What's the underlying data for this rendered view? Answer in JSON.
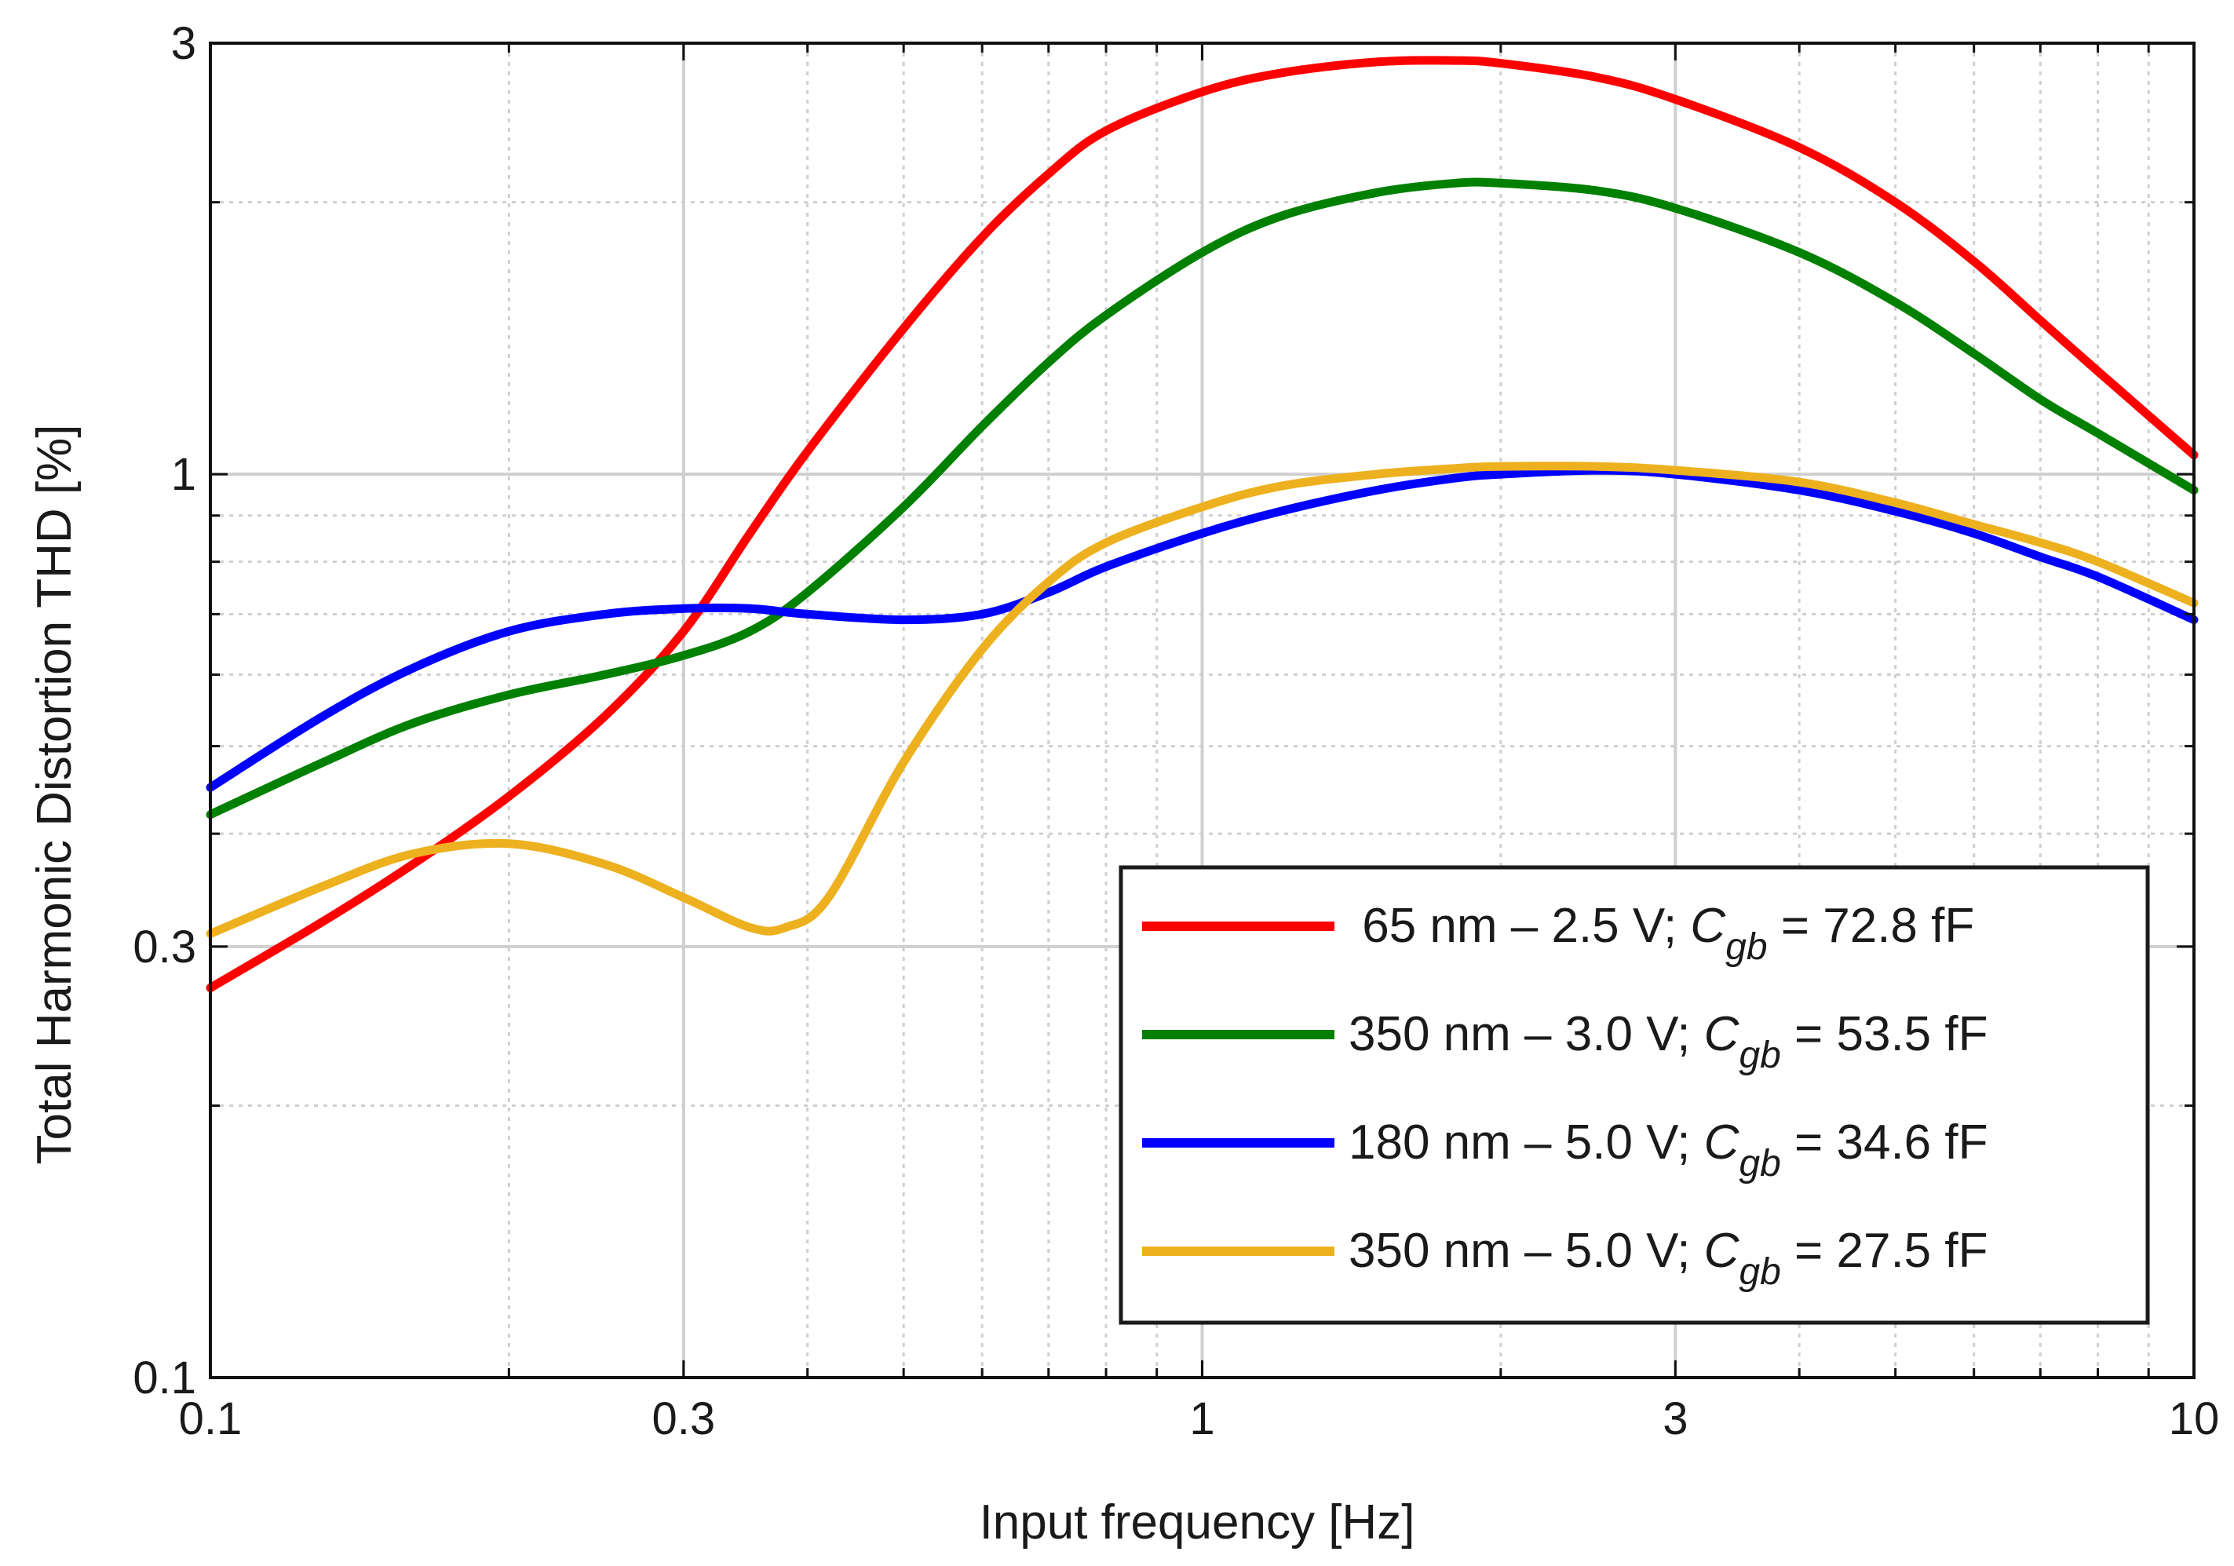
{
  "chart_data": {
    "type": "line",
    "xlabel": "Input frequency [Hz]",
    "ylabel": "Total Harmonic Distortion THD [%]",
    "xscale": "log",
    "yscale": "log",
    "xlim": [
      0.1,
      10
    ],
    "ylim": [
      0.1,
      3
    ],
    "xticks": [
      0.1,
      0.3,
      1,
      3,
      10
    ],
    "xtick_labels": [
      "0.1",
      "0.3",
      "1",
      "3",
      "10"
    ],
    "yticks": [
      0.1,
      0.3,
      1,
      3
    ],
    "ytick_labels": [
      "0.1",
      "0.3",
      "1",
      "3"
    ],
    "grid": true,
    "legend_position": "bottom-right",
    "series": [
      {
        "name": "65 nm – 2.5 V; Cgb = 72.8 fF",
        "label_main": " 65 nm – 2.5 V; ",
        "label_symbol": "C",
        "label_subscript": "gb",
        "label_tail": " = 72.8 fF",
        "color": "#ff0000",
        "x": [
          0.1,
          0.13,
          0.16,
          0.2,
          0.25,
          0.3,
          0.35,
          0.4,
          0.5,
          0.6,
          0.7,
          0.8,
          1.0,
          1.2,
          1.5,
          1.8,
          2.0,
          2.5,
          3.0,
          4.0,
          5.0,
          6.0,
          7.0,
          8.0,
          10.0
        ],
        "y": [
          0.27,
          0.32,
          0.37,
          0.44,
          0.54,
          0.67,
          0.86,
          1.06,
          1.45,
          1.83,
          2.15,
          2.4,
          2.65,
          2.78,
          2.86,
          2.87,
          2.85,
          2.75,
          2.6,
          2.3,
          2.0,
          1.72,
          1.48,
          1.3,
          1.05
        ]
      },
      {
        "name": "350 nm – 3.0 V; Cgb = 53.5 fF",
        "label_main": "350 nm – 3.0 V; ",
        "label_symbol": "C",
        "label_subscript": "gb",
        "label_tail": " = 53.5 fF",
        "color": "#008000",
        "x": [
          0.1,
          0.13,
          0.16,
          0.2,
          0.25,
          0.3,
          0.35,
          0.4,
          0.5,
          0.6,
          0.7,
          0.8,
          1.0,
          1.2,
          1.5,
          1.8,
          2.0,
          2.5,
          3.0,
          4.0,
          5.0,
          6.0,
          7.0,
          8.0,
          10.0
        ],
        "y": [
          0.42,
          0.48,
          0.53,
          0.57,
          0.6,
          0.63,
          0.67,
          0.74,
          0.92,
          1.13,
          1.33,
          1.5,
          1.76,
          1.93,
          2.05,
          2.1,
          2.1,
          2.06,
          1.97,
          1.76,
          1.55,
          1.36,
          1.21,
          1.11,
          0.96
        ]
      },
      {
        "name": "180 nm – 5.0 V; Cgb = 34.6 fF",
        "label_main": "180 nm – 5.0 V; ",
        "label_symbol": "C",
        "label_subscript": "gb",
        "label_tail": " = 34.6 fF",
        "color": "#0000ff",
        "x": [
          0.1,
          0.13,
          0.16,
          0.2,
          0.25,
          0.3,
          0.35,
          0.4,
          0.5,
          0.6,
          0.7,
          0.8,
          1.0,
          1.2,
          1.5,
          1.8,
          2.0,
          2.5,
          3.0,
          4.0,
          5.0,
          6.0,
          7.0,
          8.0,
          10.0
        ],
        "y": [
          0.45,
          0.54,
          0.61,
          0.67,
          0.7,
          0.71,
          0.71,
          0.7,
          0.69,
          0.7,
          0.74,
          0.79,
          0.86,
          0.91,
          0.96,
          0.99,
          1.0,
          1.01,
          1.0,
          0.96,
          0.91,
          0.86,
          0.81,
          0.77,
          0.69
        ]
      },
      {
        "name": "350 nm – 5.0 V; Cgb = 27.5 fF",
        "label_main": "350 nm – 5.0 V; ",
        "label_symbol": "C",
        "label_subscript": "gb",
        "label_tail": " = 27.5 fF",
        "color": "#edb120",
        "x": [
          0.1,
          0.13,
          0.16,
          0.2,
          0.25,
          0.3,
          0.35,
          0.38,
          0.42,
          0.5,
          0.6,
          0.7,
          0.8,
          1.0,
          1.2,
          1.5,
          1.8,
          2.0,
          2.5,
          3.0,
          4.0,
          5.0,
          6.0,
          7.0,
          8.0,
          10.0
        ],
        "y": [
          0.31,
          0.35,
          0.38,
          0.39,
          0.37,
          0.34,
          0.315,
          0.315,
          0.34,
          0.48,
          0.64,
          0.76,
          0.84,
          0.92,
          0.97,
          1.0,
          1.015,
          1.02,
          1.02,
          1.01,
          0.98,
          0.93,
          0.88,
          0.84,
          0.8,
          0.72
        ]
      }
    ]
  }
}
